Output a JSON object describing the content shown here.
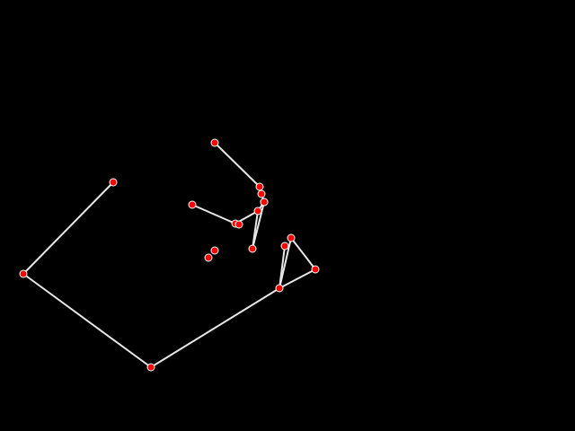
{
  "colors": {
    "background": "#000000",
    "edge": "#e6e6e6",
    "node_fill": "#ff0000",
    "node_stroke": "#ffffff"
  },
  "graph": {
    "edges_count_label": "",
    "edge_list": [
      [
        "n_c",
        "n_l"
      ],
      [
        "n_l",
        "n_b"
      ],
      [
        "n_b",
        "n_r"
      ],
      [
        "n_r",
        "n_v1"
      ],
      [
        "n_v1",
        "n_m2"
      ],
      [
        "n_m2",
        "n_r"
      ],
      [
        "n_r",
        "n_m1"
      ],
      [
        "n_u1",
        "n_u2"
      ],
      [
        "n_u2",
        "n_u3"
      ],
      [
        "n_u3",
        "n_u4"
      ],
      [
        "n_u4",
        "n_u5"
      ],
      [
        "n_u5",
        "n_u6"
      ],
      [
        "n_u6",
        "n_u7"
      ],
      [
        "n_u5",
        "n_u8"
      ],
      [
        "n_u8",
        "n_u9"
      ]
    ],
    "nodes": [
      {
        "id": "n_c"
      },
      {
        "id": "n_l"
      },
      {
        "id": "n_b"
      },
      {
        "id": "n_r"
      },
      {
        "id": "n_v1"
      },
      {
        "id": "n_m1"
      },
      {
        "id": "n_m2"
      },
      {
        "id": "n_u1"
      },
      {
        "id": "n_u2"
      },
      {
        "id": "n_u3"
      },
      {
        "id": "n_u4"
      },
      {
        "id": "n_u5"
      },
      {
        "id": "n_u6"
      },
      {
        "id": "n_u7"
      },
      {
        "id": "n_u8"
      },
      {
        "id": "n_u9"
      },
      {
        "id": "n_s1"
      },
      {
        "id": "n_s2"
      }
    ]
  }
}
